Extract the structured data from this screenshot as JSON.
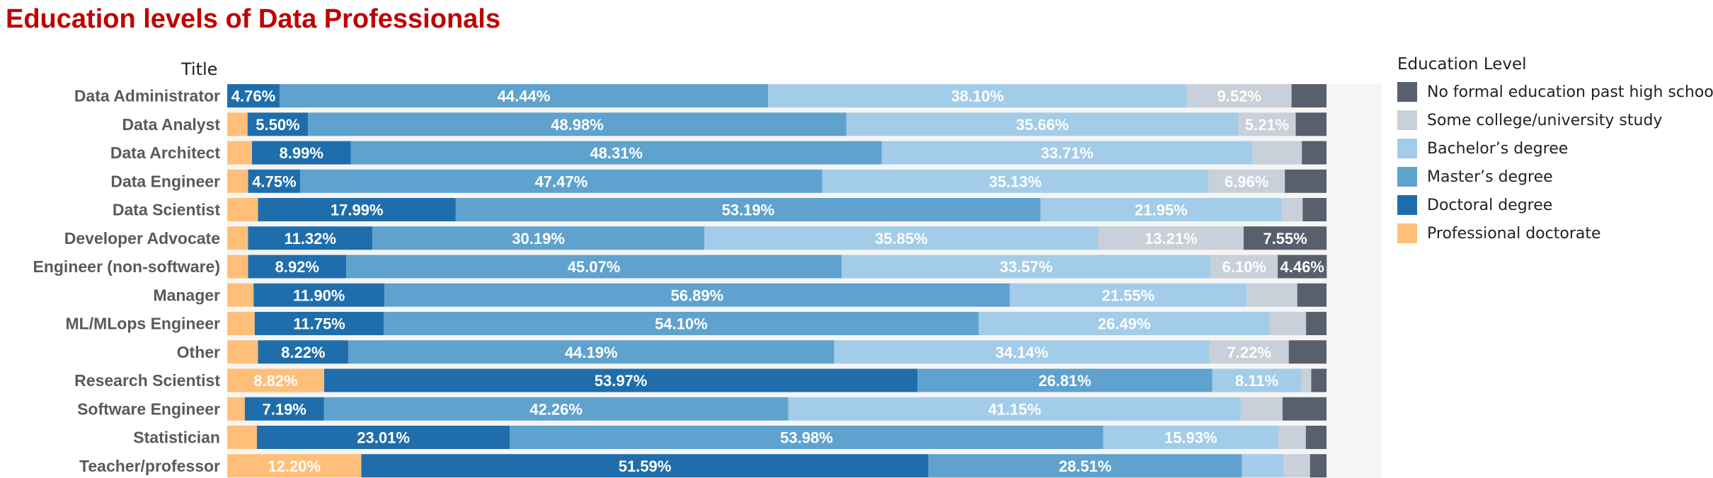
{
  "chart_data": {
    "type": "bar",
    "orientation": "horizontal",
    "stacked": true,
    "normalized": true,
    "title": "Education levels of Data Professionals",
    "row_header": "Title",
    "categories": [
      "Data Administrator",
      "Data Analyst",
      "Data Architect",
      "Data Engineer",
      "Data Scientist",
      "Developer Advocate",
      "Engineer (non-software)",
      "Manager",
      "ML/MLops Engineer",
      "Other",
      "Research Scientist",
      "Software Engineer",
      "Statistician",
      "Teacher/professor"
    ],
    "legend_title": "Education Level",
    "legend_placement": "right",
    "legend_order": [
      5,
      4,
      3,
      2,
      1,
      0
    ],
    "series": [
      {
        "name": "Professional doctorate",
        "color": "#ffbf79",
        "values": [
          0,
          1.85,
          2.25,
          1.9,
          2.8,
          1.89,
          1.9,
          2.4,
          2.5,
          2.8,
          8.82,
          1.6,
          2.7,
          12.2
        ]
      },
      {
        "name": "Doctoral degree",
        "color": "#1f6eab",
        "values": [
          4.76,
          5.5,
          8.99,
          4.75,
          17.99,
          11.32,
          8.92,
          11.9,
          11.75,
          8.22,
          53.97,
          7.19,
          23.01,
          51.59
        ]
      },
      {
        "name": "Master’s degree",
        "color": "#5fa2ce",
        "values": [
          44.44,
          48.98,
          48.31,
          47.47,
          53.19,
          30.19,
          45.07,
          56.89,
          54.1,
          44.19,
          26.81,
          42.26,
          53.98,
          28.51
        ]
      },
      {
        "name": "Bachelor’s degree",
        "color": "#a3cce9",
        "values": [
          38.1,
          35.66,
          33.71,
          35.13,
          21.95,
          35.85,
          33.57,
          21.55,
          26.49,
          34.14,
          8.11,
          41.15,
          15.93,
          3.8
        ]
      },
      {
        "name": "Some college/university study",
        "color": "#c8d0d9",
        "values": [
          9.52,
          5.21,
          4.5,
          6.96,
          1.9,
          13.21,
          6.1,
          4.6,
          3.3,
          7.22,
          0.9,
          3.8,
          2.5,
          2.4
        ]
      },
      {
        "name": "No formal education past high school",
        "color": "#57606c",
        "values": [
          3.18,
          2.8,
          2.24,
          3.79,
          2.17,
          7.55,
          4.46,
          2.66,
          1.86,
          3.43,
          1.39,
          4.0,
          1.88,
          1.5
        ]
      }
    ],
    "labels": [
      [
        "",
        "4.76%",
        "44.44%",
        "38.10%",
        "9.52%",
        ""
      ],
      [
        "",
        "5.50%",
        "48.98%",
        "35.66%",
        "5.21%",
        ""
      ],
      [
        "",
        "8.99%",
        "48.31%",
        "33.71%",
        "",
        ""
      ],
      [
        "",
        "4.75%",
        "47.47%",
        "35.13%",
        "6.96%",
        ""
      ],
      [
        "",
        "17.99%",
        "53.19%",
        "21.95%",
        "",
        ""
      ],
      [
        "",
        "11.32%",
        "30.19%",
        "35.85%",
        "13.21%",
        "7.55%"
      ],
      [
        "",
        "8.92%",
        "45.07%",
        "33.57%",
        "6.10%",
        "4.46%"
      ],
      [
        "",
        "11.90%",
        "56.89%",
        "21.55%",
        "",
        ""
      ],
      [
        "",
        "11.75%",
        "54.10%",
        "26.49%",
        "",
        ""
      ],
      [
        "",
        "8.22%",
        "44.19%",
        "34.14%",
        "7.22%",
        ""
      ],
      [
        "8.82%",
        "53.97%",
        "26.81%",
        "8.11%",
        "",
        ""
      ],
      [
        "",
        "7.19%",
        "42.26%",
        "41.15%",
        "",
        ""
      ],
      [
        "",
        "23.01%",
        "53.98%",
        "15.93%",
        "",
        ""
      ],
      [
        "12.20%",
        "51.59%",
        "28.51%",
        "",
        "",
        ""
      ]
    ],
    "xlim": [
      0,
      100
    ],
    "grid": false
  }
}
